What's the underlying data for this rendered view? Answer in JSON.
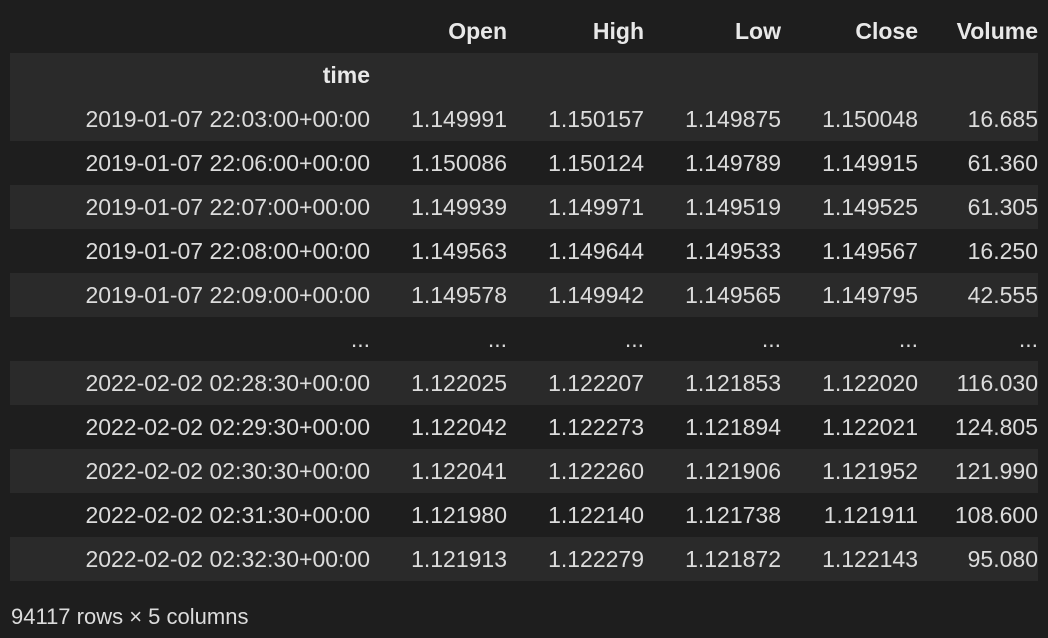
{
  "dataframe": {
    "columns": [
      "Open",
      "High",
      "Low",
      "Close",
      "Volume"
    ],
    "index_name": "time",
    "rows": [
      {
        "index": "2019-01-07 22:03:00+00:00",
        "values": [
          "1.149991",
          "1.150157",
          "1.149875",
          "1.150048",
          "16.685"
        ]
      },
      {
        "index": "2019-01-07 22:06:00+00:00",
        "values": [
          "1.150086",
          "1.150124",
          "1.149789",
          "1.149915",
          "61.360"
        ]
      },
      {
        "index": "2019-01-07 22:07:00+00:00",
        "values": [
          "1.149939",
          "1.149971",
          "1.149519",
          "1.149525",
          "61.305"
        ]
      },
      {
        "index": "2019-01-07 22:08:00+00:00",
        "values": [
          "1.149563",
          "1.149644",
          "1.149533",
          "1.149567",
          "16.250"
        ]
      },
      {
        "index": "2019-01-07 22:09:00+00:00",
        "values": [
          "1.149578",
          "1.149942",
          "1.149565",
          "1.149795",
          "42.555"
        ]
      },
      {
        "index": "...",
        "values": [
          "...",
          "...",
          "...",
          "...",
          "..."
        ]
      },
      {
        "index": "2022-02-02 02:28:30+00:00",
        "values": [
          "1.122025",
          "1.122207",
          "1.121853",
          "1.122020",
          "116.030"
        ]
      },
      {
        "index": "2022-02-02 02:29:30+00:00",
        "values": [
          "1.122042",
          "1.122273",
          "1.121894",
          "1.122021",
          "124.805"
        ]
      },
      {
        "index": "2022-02-02 02:30:30+00:00",
        "values": [
          "1.122041",
          "1.122260",
          "1.121906",
          "1.121952",
          "121.990"
        ]
      },
      {
        "index": "2022-02-02 02:31:30+00:00",
        "values": [
          "1.121980",
          "1.122140",
          "1.121738",
          "1.121911",
          "108.600"
        ]
      },
      {
        "index": "2022-02-02 02:32:30+00:00",
        "values": [
          "1.121913",
          "1.122279",
          "1.121872",
          "1.122143",
          "95.080"
        ]
      }
    ],
    "shape_text": "94117 rows × 5 columns"
  },
  "colors": {
    "background": "#1e1e1e",
    "stripe": "#2a2a2a",
    "text": "#dcdcdc"
  }
}
